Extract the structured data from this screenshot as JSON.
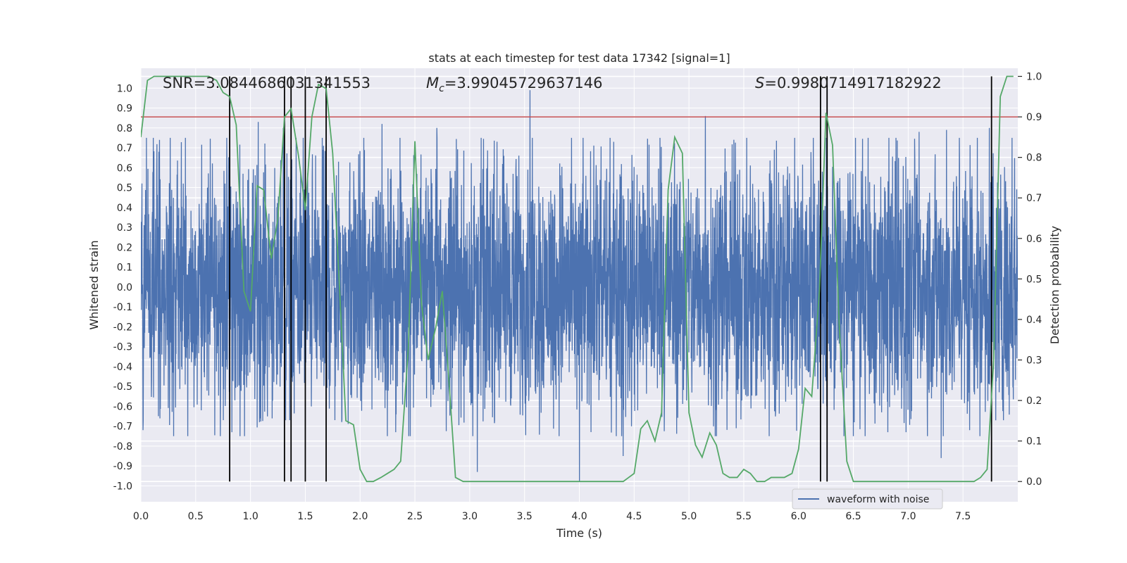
{
  "chart_data": {
    "type": "line",
    "title": "stats at each timestep for test data 17342 [signal=1]",
    "xlabel": "Time (s)",
    "ylabel": "Whitened strain",
    "y2label": "Detection probability",
    "xlim": [
      0.0,
      8.0
    ],
    "ylim": [
      -1.08,
      1.1
    ],
    "y2lim": [
      -0.05,
      1.02
    ],
    "xticks": [
      "0.0",
      "0.5",
      "1.0",
      "1.5",
      "2.0",
      "2.5",
      "3.0",
      "3.5",
      "4.0",
      "4.5",
      "5.0",
      "5.5",
      "6.0",
      "6.5",
      "7.0",
      "7.5"
    ],
    "yticks": [
      "1.0",
      "0.9",
      "0.8",
      "0.7",
      "0.6",
      "0.5",
      "0.4",
      "0.3",
      "0.2",
      "0.1",
      "0.0",
      "-0.1",
      "-0.2",
      "-0.3",
      "-0.4",
      "-0.5",
      "-0.6",
      "-0.7",
      "-0.8",
      "-0.9",
      "-1.0"
    ],
    "y2ticks": [
      "1.0",
      "0.9",
      "0.8",
      "0.7",
      "0.6",
      "0.5",
      "0.4",
      "0.3",
      "0.2",
      "0.1",
      "0.0"
    ],
    "annotations": {
      "snr": "SNR=3.0844686031341553",
      "mc_symbol": "M",
      "mc_sub": "c",
      "mc_value": "=3.99045729637146",
      "s_symbol": "S",
      "s_value": "=0.9980714917182922"
    },
    "legend": {
      "entries": [
        "waveform with noise"
      ],
      "placement": "lower-right"
    },
    "threshold": {
      "value": 0.9,
      "axis": "right",
      "color": "#c44e52"
    },
    "event_lines": [
      0.81,
      1.31,
      1.37,
      1.5,
      1.69,
      6.2,
      6.26,
      7.76
    ],
    "colors": {
      "waveform": "#4c72b0",
      "probability": "#55a868",
      "events": "#000000",
      "background": "#eaeaf2",
      "grid": "#ffffff"
    },
    "waveform": {
      "name": "waveform with noise",
      "sampling": "dense noise samples over 0 to 8 s",
      "typical_range": [
        -0.5,
        0.5
      ],
      "notable_peaks": [
        [
          0.17,
          0.74
        ],
        [
          1.07,
          0.83
        ],
        [
          1.3,
          0.8
        ],
        [
          2.2,
          0.82
        ],
        [
          2.7,
          0.8
        ],
        [
          3.55,
          0.99
        ],
        [
          5.15,
          0.86
        ],
        [
          6.52,
          0.75
        ],
        [
          7.1,
          0.78
        ],
        [
          7.35,
          0.79
        ],
        [
          7.74,
          0.8
        ]
      ],
      "notable_troughs": [
        [
          0.02,
          -0.72
        ],
        [
          0.55,
          -0.62
        ],
        [
          0.83,
          -0.73
        ],
        [
          3.07,
          -0.93
        ],
        [
          4.0,
          -0.98
        ],
        [
          4.4,
          -0.85
        ],
        [
          6.98,
          -0.73
        ],
        [
          7.3,
          -0.86
        ],
        [
          7.56,
          -0.72
        ]
      ]
    },
    "series": [
      {
        "name": "detection probability",
        "axis": "right",
        "x": [
          0.0,
          0.06,
          0.12,
          0.19,
          0.25,
          0.31,
          0.37,
          0.44,
          0.5,
          0.56,
          0.62,
          0.69,
          0.75,
          0.81,
          0.87,
          0.94,
          1.0,
          1.06,
          1.12,
          1.19,
          1.25,
          1.31,
          1.37,
          1.44,
          1.5,
          1.56,
          1.62,
          1.69,
          1.75,
          1.81,
          1.87,
          1.94,
          2.0,
          2.06,
          2.12,
          2.19,
          2.25,
          2.31,
          2.37,
          2.44,
          2.5,
          2.56,
          2.62,
          2.69,
          2.75,
          2.81,
          2.87,
          2.94,
          3.0,
          3.2,
          3.4,
          3.6,
          3.8,
          4.0,
          4.2,
          4.4,
          4.5,
          4.56,
          4.62,
          4.69,
          4.75,
          4.81,
          4.87,
          4.94,
          5.0,
          5.06,
          5.12,
          5.19,
          5.25,
          5.31,
          5.37,
          5.44,
          5.5,
          5.56,
          5.62,
          5.69,
          5.75,
          5.81,
          5.87,
          5.94,
          6.0,
          6.06,
          6.12,
          6.19,
          6.25,
          6.31,
          6.37,
          6.44,
          6.5,
          6.56,
          6.62,
          6.69,
          7.0,
          7.3,
          7.6,
          7.66,
          7.72,
          7.78,
          7.84,
          7.9,
          7.96
        ],
        "values": [
          0.85,
          0.99,
          1.0,
          1.0,
          1.0,
          1.0,
          1.0,
          1.0,
          1.0,
          1.0,
          1.0,
          0.99,
          0.96,
          0.95,
          0.88,
          0.47,
          0.42,
          0.73,
          0.72,
          0.55,
          0.65,
          0.9,
          0.92,
          0.8,
          0.67,
          0.9,
          0.98,
          0.97,
          0.81,
          0.49,
          0.15,
          0.14,
          0.03,
          0.0,
          0.0,
          0.01,
          0.02,
          0.03,
          0.05,
          0.33,
          0.84,
          0.44,
          0.3,
          0.38,
          0.47,
          0.25,
          0.01,
          0.0,
          0.0,
          0.0,
          0.0,
          0.0,
          0.0,
          0.0,
          0.0,
          0.0,
          0.02,
          0.13,
          0.15,
          0.1,
          0.17,
          0.72,
          0.85,
          0.81,
          0.17,
          0.09,
          0.06,
          0.12,
          0.09,
          0.02,
          0.01,
          0.01,
          0.03,
          0.02,
          0.0,
          0.0,
          0.01,
          0.01,
          0.01,
          0.02,
          0.08,
          0.23,
          0.21,
          0.47,
          0.91,
          0.83,
          0.39,
          0.05,
          0.0,
          0.0,
          0.0,
          0.0,
          0.0,
          0.0,
          0.0,
          0.01,
          0.03,
          0.3,
          0.95,
          1.0,
          1.0
        ]
      }
    ]
  }
}
